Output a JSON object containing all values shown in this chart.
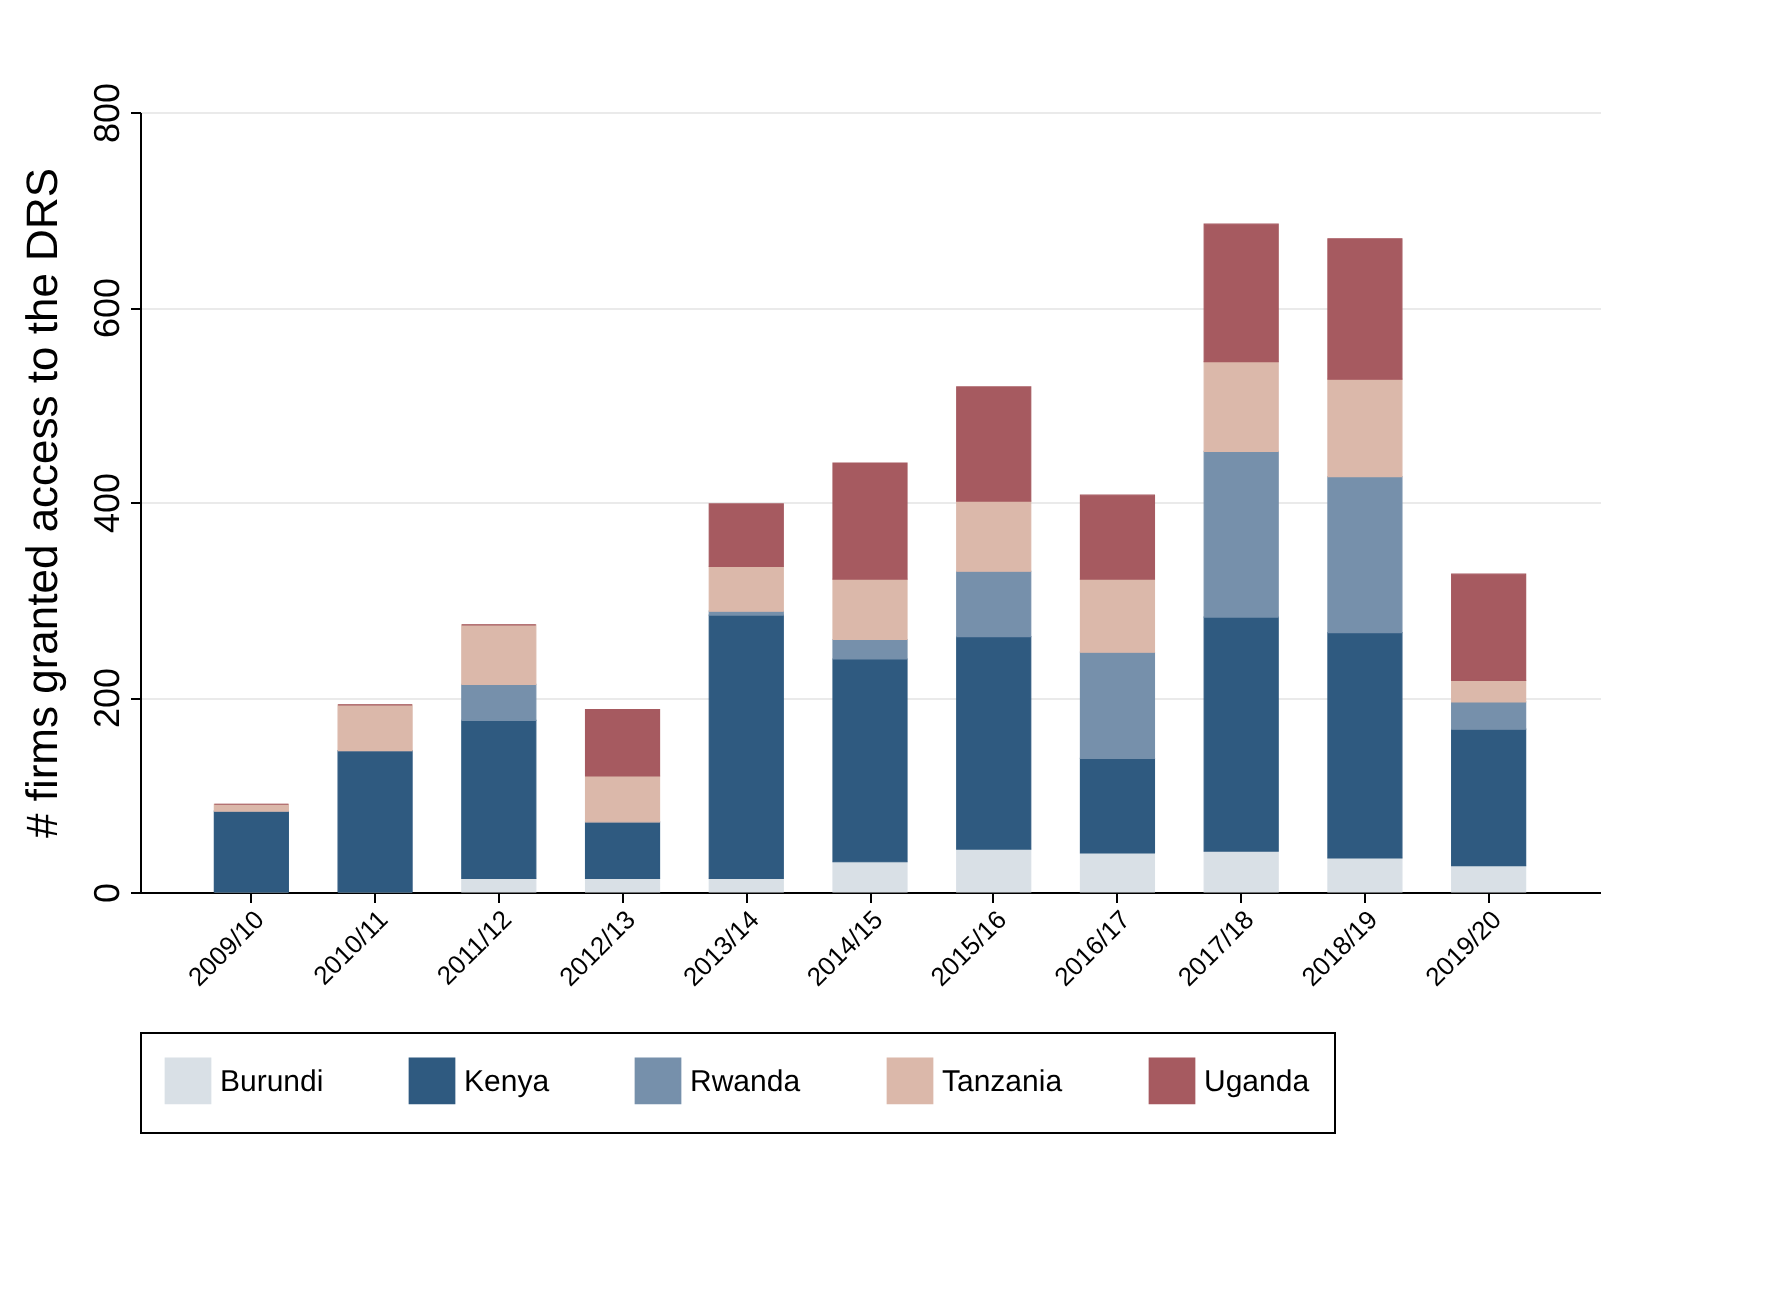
{
  "chart_data": {
    "type": "bar",
    "stacked": true,
    "ylabel": "# firms granted access to the DRS",
    "categories": [
      "2009/10",
      "2010/11",
      "2011/12",
      "2012/13",
      "2013/14",
      "2014/15",
      "2015/16",
      "2016/17",
      "2017/18",
      "2018/19",
      "2019/20"
    ],
    "series": [
      {
        "name": "Burundi",
        "color": "#d9e0e6",
        "values": [
          0,
          0,
          14,
          14,
          14,
          31,
          44,
          40,
          42,
          35,
          27
        ]
      },
      {
        "name": "Kenya",
        "color": "#2f5a80",
        "values": [
          83,
          145,
          162,
          58,
          270,
          208,
          218,
          97,
          240,
          231,
          140
        ]
      },
      {
        "name": "Rwanda",
        "color": "#7690ab",
        "values": [
          0,
          0,
          37,
          0,
          4,
          20,
          67,
          109,
          170,
          160,
          28
        ]
      },
      {
        "name": "Tanzania",
        "color": "#dbb8aa",
        "values": [
          7,
          47,
          61,
          47,
          46,
          62,
          72,
          75,
          92,
          100,
          22
        ]
      },
      {
        "name": "Uganda",
        "color": "#a65a60",
        "values": [
          0,
          0,
          0,
          68,
          64,
          119,
          117,
          86,
          141,
          144,
          109
        ]
      }
    ],
    "ylim": [
      0,
      800
    ],
    "yticks": [
      0,
      200,
      400,
      600,
      800
    ],
    "grid": "y",
    "legend": "bottom"
  }
}
